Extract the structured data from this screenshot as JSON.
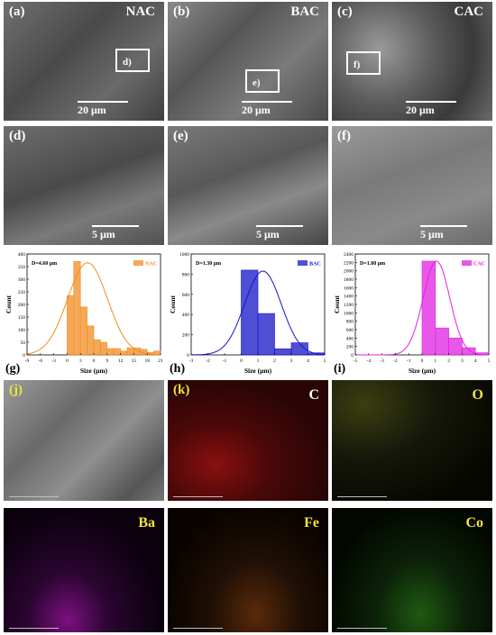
{
  "sem_panels": [
    {
      "label": "(a)",
      "title": "NAC",
      "scale": "20 μm",
      "inset": "d)"
    },
    {
      "label": "(b)",
      "title": "BAC",
      "scale": "20 μm",
      "inset": "e)"
    },
    {
      "label": "(c)",
      "title": "CAC",
      "scale": "20 μm",
      "inset": "f)"
    },
    {
      "label": "(d)",
      "title": "",
      "scale": "5 μm"
    },
    {
      "label": "(e)",
      "title": "",
      "scale": "5 μm"
    },
    {
      "label": "(f)",
      "title": "",
      "scale": "5 μm"
    }
  ],
  "map_panels": [
    {
      "label": "(j)",
      "element": ""
    },
    {
      "label": "(k)",
      "element": "C"
    },
    {
      "label": "",
      "element": "O"
    },
    {
      "label": "",
      "element": "Ba"
    },
    {
      "label": "",
      "element": "Fe"
    },
    {
      "label": "",
      "element": "Co"
    }
  ],
  "colors": {
    "NAC": "#f28b1f",
    "BAC": "#1414c8",
    "CAC": "#e020e0",
    "C": "#c8201c",
    "O": "#b4c83c",
    "Ba": "#b020c0",
    "Fe": "#e07a18",
    "Co": "#3cc83c",
    "element_label": "#f5e23a"
  },
  "chart_data": [
    {
      "panel": "(g)",
      "type": "bar",
      "legend": "NAC",
      "annotation": "D=4.60 μm",
      "xlabel": "Size (μm)",
      "ylabel": "Count",
      "xlim": [
        -9,
        21
      ],
      "xticks": [
        -9,
        -6,
        -3,
        0,
        3,
        6,
        9,
        12,
        15,
        18,
        21
      ],
      "ylim": [
        0,
        400
      ],
      "yticks": [
        0,
        50,
        100,
        150,
        200,
        250,
        300,
        350,
        400
      ],
      "bin_width": 1.5,
      "bins": [
        [
          0,
          235
        ],
        [
          1.5,
          370
        ],
        [
          3,
          190
        ],
        [
          4.5,
          115
        ],
        [
          6,
          60
        ],
        [
          7.5,
          50
        ],
        [
          9,
          25
        ],
        [
          10.5,
          25
        ],
        [
          12,
          15
        ],
        [
          13.5,
          28
        ],
        [
          15,
          28
        ],
        [
          16.5,
          22
        ],
        [
          18,
          10
        ],
        [
          19.5,
          15
        ]
      ],
      "fit": {
        "mean": 4.6,
        "sd": 4.5,
        "peak": 365
      }
    },
    {
      "panel": "(h)",
      "type": "bar",
      "legend": "BAC",
      "annotation": "D=1.30 μm",
      "xlabel": "Size (μm)",
      "ylabel": "Count",
      "xlim": [
        -3,
        5
      ],
      "xticks": [
        -3,
        -2,
        -1,
        0,
        1,
        2,
        3,
        4,
        5
      ],
      "ylim": [
        0,
        1000
      ],
      "yticks": [
        0,
        200,
        400,
        600,
        800,
        1000
      ],
      "bin_width": 1,
      "bins": [
        [
          0,
          840
        ],
        [
          1,
          410
        ],
        [
          2,
          60
        ],
        [
          3,
          120
        ],
        [
          4,
          20
        ]
      ],
      "fit": {
        "mean": 1.3,
        "sd": 1.1,
        "peak": 830
      }
    },
    {
      "panel": "(i)",
      "type": "bar",
      "legend": "CAC",
      "annotation": "D=1.08 μm",
      "xlabel": "Size (μm)",
      "ylabel": "Count",
      "xlim": [
        -5,
        5
      ],
      "xticks": [
        -5,
        -4,
        -3,
        -2,
        -1,
        0,
        1,
        2,
        3,
        4,
        5
      ],
      "ylim": [
        0,
        2400
      ],
      "yticks": [
        0,
        200,
        400,
        600,
        800,
        1000,
        1200,
        1400,
        1600,
        1800,
        2000,
        2200,
        2400
      ],
      "bin_width": 1,
      "bins": [
        [
          0,
          2230
        ],
        [
          1,
          640
        ],
        [
          2,
          400
        ],
        [
          3,
          170
        ],
        [
          4,
          50
        ]
      ],
      "fit": {
        "mean": 1.08,
        "sd": 1.0,
        "peak": 2230
      }
    }
  ]
}
